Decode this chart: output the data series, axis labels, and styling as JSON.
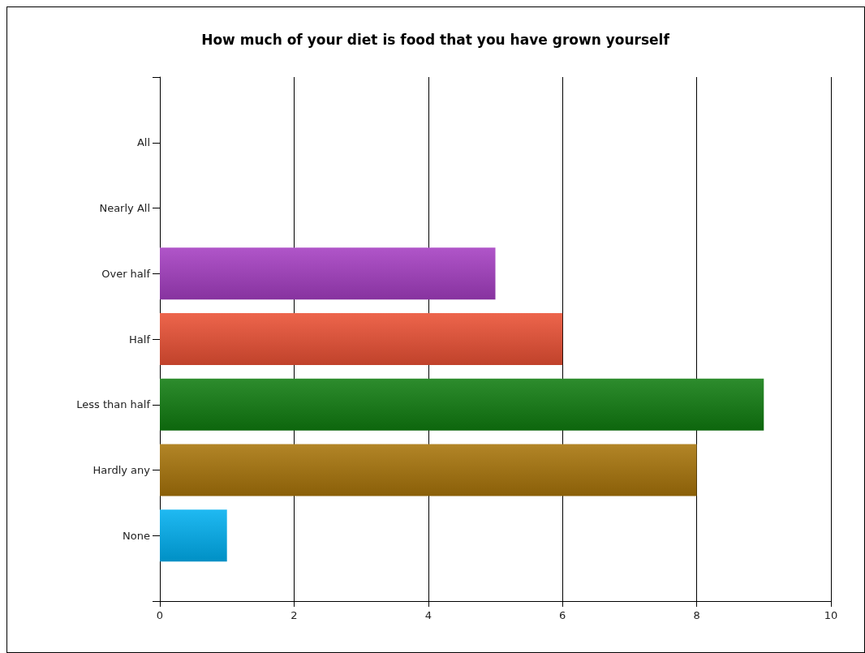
{
  "chart_data": {
    "type": "bar",
    "orientation": "horizontal",
    "title": "How much of your diet is food that you have grown yourself",
    "categories": [
      "All",
      "Nearly All",
      "Over half",
      "Half",
      "Less than half",
      "Hardly any",
      "None"
    ],
    "values": [
      0,
      0,
      5,
      6,
      9,
      8,
      1
    ],
    "colors": [
      null,
      null,
      "#a53ec2",
      "#ea5034",
      "#107c10",
      "#a8740a",
      "#00b0f0"
    ],
    "xlim": [
      0,
      10
    ],
    "xticks": [
      0,
      2,
      4,
      6,
      8,
      10
    ],
    "grid": "x"
  }
}
